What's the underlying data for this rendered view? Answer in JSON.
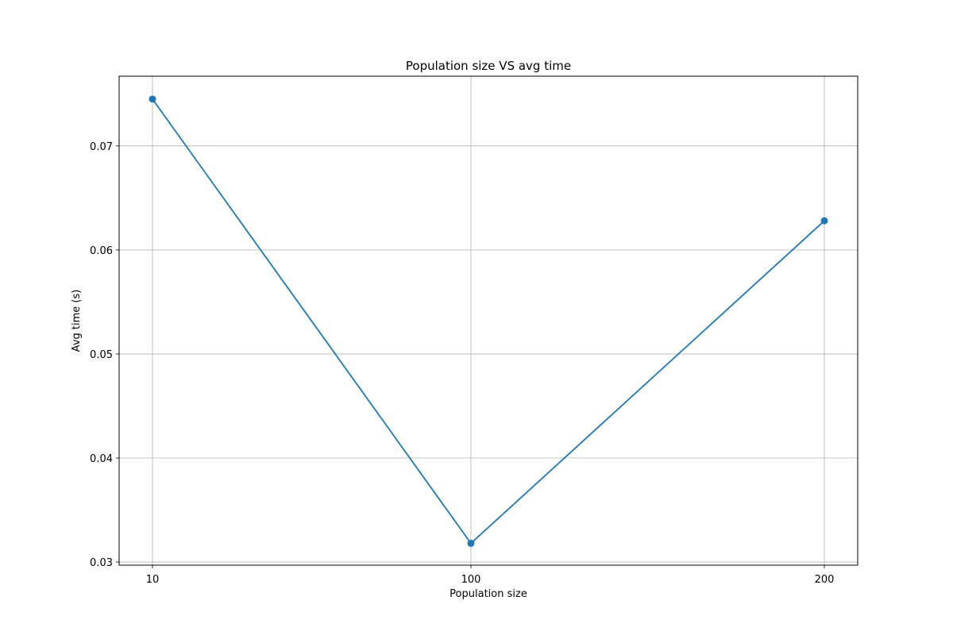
{
  "chart_data": {
    "type": "line",
    "title": "Population size VS avg time",
    "xlabel": "Population size",
    "ylabel": "Avg time (s)",
    "categories": [
      "10",
      "100",
      "200"
    ],
    "series": [
      {
        "values": [
          0.0745,
          0.0318,
          0.0628
        ],
        "color": "#1f77b4",
        "marker": "circle"
      }
    ],
    "yticks": [
      "0.03",
      "0.04",
      "0.05",
      "0.06",
      "0.07"
    ],
    "ylim": [
      0.0297,
      0.0767
    ],
    "grid": true
  }
}
